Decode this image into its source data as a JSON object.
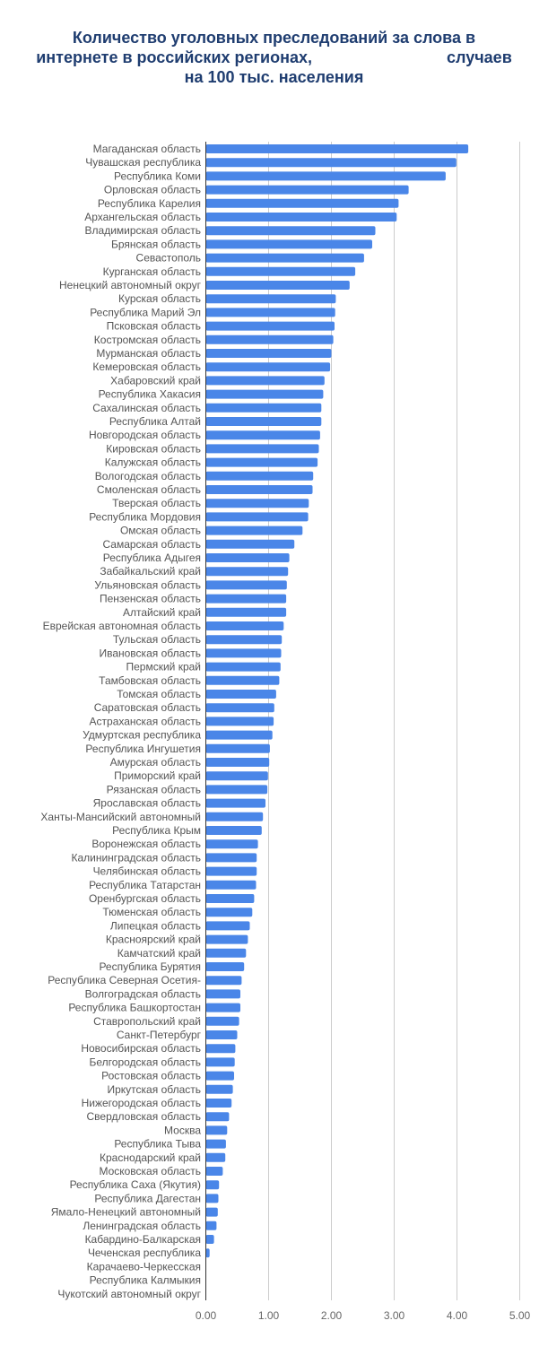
{
  "chart_data": {
    "type": "bar",
    "orientation": "horizontal",
    "title_lines": [
      "Количество уголовных преследований за слова в",
      "интернете в российских регионах,                              случаев",
      "на 100 тыс. населения"
    ],
    "xlim": [
      0,
      5
    ],
    "xticks": [
      "0.00",
      "1.00",
      "2.00",
      "3.00",
      "4.00",
      "5.00"
    ],
    "grid": true,
    "legend": "none",
    "bar_color": "#4a86e8",
    "categories": [
      "Магаданская область",
      "Чувашская республика",
      "Республика Коми",
      "Орловская область",
      "Республика Карелия",
      "Архангельская область",
      "Владимирская область",
      "Брянская область",
      "Севастополь",
      "Курганская область",
      "Ненецкий автономный округ",
      "Курская область",
      "Республика Марий Эл",
      "Псковская область",
      "Костромская область",
      "Мурманская область",
      "Кемеровская область",
      "Хабаровский край",
      "Республика Хакасия",
      "Сахалинская область",
      "Республика Алтай",
      "Новгородская область",
      "Кировская область",
      "Калужская область",
      "Вологодская область",
      "Смоленская область",
      "Тверская область",
      "Республика Мордовия",
      "Омская область",
      "Самарская область",
      "Республика Адыгея",
      "Забайкальский край",
      "Ульяновская область",
      "Пензенская область",
      "Алтайский край",
      "Еврейская автономная область",
      "Тульская область",
      "Ивановская область",
      "Пермский край",
      "Тамбовская область",
      "Томская область",
      "Саратовская область",
      "Астраханская область",
      "Удмуртская республика",
      "Республика Ингушетия",
      "Амурская область",
      "Приморский край",
      "Рязанская область",
      "Ярославская область",
      "Ханты-Мансийский автономный",
      "Республика Крым",
      "Воронежская область",
      "Калининградская область",
      "Челябинская область",
      "Республика Татарстан",
      "Оренбургская область",
      "Тюменская область",
      "Липецкая область",
      "Красноярский край",
      "Камчатский край",
      "Республика Бурятия",
      "Республика Северная Осетия-",
      "Волгоградская область",
      "Республика Башкортостан",
      "Ставропольский край",
      "Санкт-Петербург",
      "Новосибирская область",
      "Белгородская область",
      "Ростовская область",
      "Иркутская область",
      "Нижегородская область",
      "Свердловская область",
      "Москва",
      "Республика Тыва",
      "Краснодарский край",
      "Московская область",
      "Республика Саха (Якутия)",
      "Республика Дагестан",
      "Ямало-Ненецкий автономный",
      "Ленинградская область",
      "Кабардино-Балкарская",
      "Чеченская республика",
      "Карачаево-Черкесская",
      "Республика Калмыкия",
      "Чукотский автономный округ"
    ],
    "values": [
      4.18,
      3.99,
      3.82,
      3.23,
      3.07,
      3.04,
      2.7,
      2.65,
      2.52,
      2.38,
      2.29,
      2.07,
      2.06,
      2.05,
      2.03,
      2.0,
      1.98,
      1.89,
      1.87,
      1.84,
      1.84,
      1.82,
      1.8,
      1.78,
      1.71,
      1.7,
      1.64,
      1.63,
      1.54,
      1.41,
      1.33,
      1.31,
      1.29,
      1.28,
      1.28,
      1.24,
      1.21,
      1.2,
      1.19,
      1.17,
      1.12,
      1.09,
      1.08,
      1.06,
      1.02,
      1.01,
      0.99,
      0.98,
      0.95,
      0.91,
      0.89,
      0.83,
      0.81,
      0.81,
      0.8,
      0.77,
      0.74,
      0.7,
      0.67,
      0.64,
      0.61,
      0.57,
      0.55,
      0.55,
      0.53,
      0.5,
      0.47,
      0.46,
      0.45,
      0.43,
      0.41,
      0.37,
      0.34,
      0.32,
      0.31,
      0.27,
      0.21,
      0.2,
      0.19,
      0.17,
      0.13,
      0.06,
      0.0,
      0.0,
      0.0
    ]
  }
}
